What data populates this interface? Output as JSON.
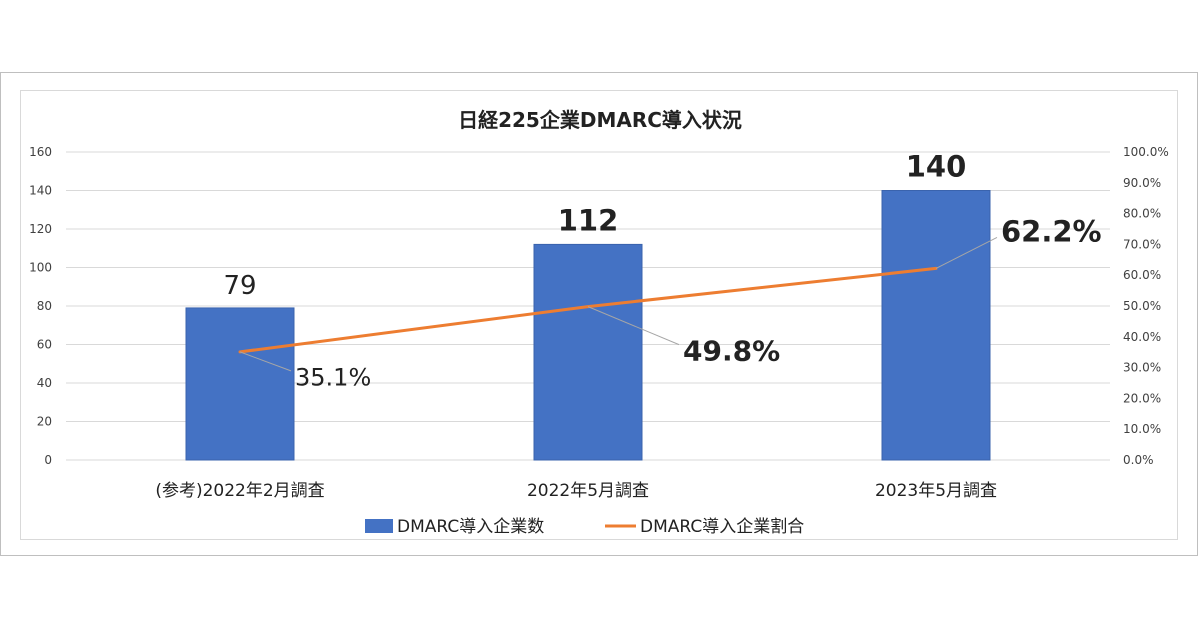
{
  "chart_data": {
    "type": "bar+line",
    "title": "日経225企業DMARC導入状況",
    "categories": [
      "(参考)2022年2月調査",
      "2022年5月調査",
      "2023年5月調査"
    ],
    "series": [
      {
        "name": "DMARC導入企業数",
        "type": "bar",
        "axis": "left",
        "values": [
          79,
          112,
          140
        ],
        "data_labels": [
          "79",
          "112",
          "140"
        ],
        "color": "#4472c4"
      },
      {
        "name": "DMARC導入企業割合",
        "type": "line",
        "axis": "right",
        "values": [
          35.1,
          49.8,
          62.2
        ],
        "data_labels": [
          "35.1%",
          "49.8%",
          "62.2%"
        ],
        "color": "#ed7d31"
      }
    ],
    "y_left": {
      "ylim": [
        0,
        160
      ],
      "ticks": [
        "0",
        "20",
        "40",
        "60",
        "80",
        "100",
        "120",
        "140",
        "160"
      ]
    },
    "y_right": {
      "ylim": [
        0,
        100
      ],
      "ticks": [
        "0.0%",
        "10.0%",
        "20.0%",
        "30.0%",
        "40.0%",
        "50.0%",
        "60.0%",
        "70.0%",
        "80.0%",
        "90.0%",
        "100.0%"
      ]
    },
    "grid": true,
    "legend_position": "bottom"
  }
}
